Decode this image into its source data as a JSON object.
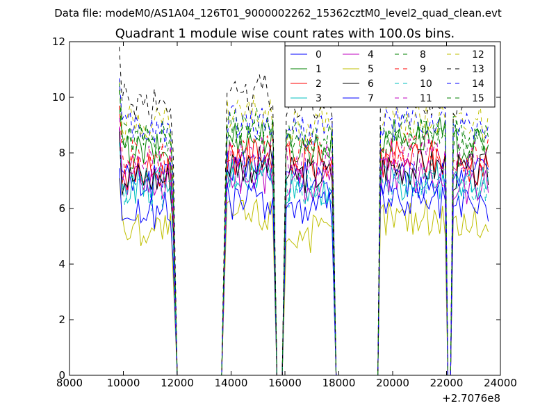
{
  "chart_data": {
    "type": "line",
    "suptitle": "Data file: modeM0/AS1A04_126T01_9000002262_15362cztM0_level2_quad_clean.evt",
    "title": "Quadrant 1 module wise count rates with 100.0s bins.",
    "xlabel": "",
    "ylabel": "",
    "x_offset_label": "+2.7076e8",
    "xlim": [
      8000,
      24000
    ],
    "ylim": [
      0,
      12
    ],
    "xticks": [
      8000,
      10000,
      12000,
      14000,
      16000,
      18000,
      20000,
      22000,
      24000
    ],
    "yticks": [
      0,
      2,
      4,
      6,
      8,
      10,
      12
    ],
    "grid": false,
    "legend_position": "top-right",
    "segments": [
      {
        "start": 9850,
        "end": 11850
      },
      {
        "start": 13850,
        "end": 15550
      },
      {
        "start": 16050,
        "end": 17750
      },
      {
        "start": 19550,
        "end": 21950
      },
      {
        "start": 22250,
        "end": 23550
      }
    ],
    "gap_samples": [
      {
        "x": 12000,
        "y": 0
      },
      {
        "x": 13650,
        "y": 0
      },
      {
        "x": 15700,
        "y": 0
      },
      {
        "x": 15900,
        "y": 0
      },
      {
        "x": 17900,
        "y": 0
      },
      {
        "x": 19450,
        "y": 0
      },
      {
        "x": 22050,
        "y": 0
      },
      {
        "x": 22150,
        "y": 0
      }
    ],
    "series": [
      {
        "name": "0",
        "color": "#0000ff",
        "dash": "solid",
        "levels": [
          7.0,
          7.6,
          7.0,
          7.0,
          7.2
        ]
      },
      {
        "name": "1",
        "color": "#008000",
        "dash": "solid",
        "levels": [
          8.0,
          8.6,
          8.2,
          8.6,
          8.2
        ]
      },
      {
        "name": "2",
        "color": "#ff0000",
        "dash": "solid",
        "levels": [
          7.3,
          7.9,
          7.6,
          7.8,
          7.5
        ]
      },
      {
        "name": "3",
        "color": "#00bfbf",
        "dash": "solid",
        "levels": [
          6.8,
          7.2,
          6.8,
          7.0,
          6.9
        ]
      },
      {
        "name": "4",
        "color": "#bf00bf",
        "dash": "solid",
        "levels": [
          7.0,
          7.2,
          6.9,
          7.2,
          6.8
        ]
      },
      {
        "name": "5",
        "color": "#bfbf00",
        "dash": "solid",
        "levels": [
          5.3,
          5.8,
          5.1,
          5.7,
          5.5
        ]
      },
      {
        "name": "6",
        "color": "#000000",
        "dash": "solid",
        "levels": [
          7.1,
          7.6,
          7.2,
          7.5,
          7.3
        ]
      },
      {
        "name": "7",
        "color": "#0000ff",
        "dash": "solid",
        "levels": [
          5.9,
          6.3,
          6.0,
          6.2,
          6.1
        ]
      },
      {
        "name": "8",
        "color": "#008000",
        "dash": "dashed",
        "levels": [
          8.5,
          9.0,
          8.6,
          8.8,
          8.7
        ]
      },
      {
        "name": "9",
        "color": "#ff0000",
        "dash": "dashed",
        "levels": [
          7.8,
          8.2,
          7.9,
          8.1,
          7.9
        ]
      },
      {
        "name": "10",
        "color": "#00bfbf",
        "dash": "dashed",
        "levels": [
          6.6,
          7.0,
          6.7,
          6.9,
          6.8
        ]
      },
      {
        "name": "11",
        "color": "#bf00bf",
        "dash": "dashed",
        "levels": [
          7.6,
          8.0,
          7.7,
          7.9,
          7.8
        ]
      },
      {
        "name": "12",
        "color": "#bfbf00",
        "dash": "dashed",
        "levels": [
          9.1,
          9.4,
          9.0,
          9.3,
          9.1
        ]
      },
      {
        "name": "13",
        "color": "#000000",
        "dash": "dashed",
        "levels": [
          9.8,
          10.2,
          9.8,
          10.0,
          9.9
        ]
      },
      {
        "name": "14",
        "color": "#0000ff",
        "dash": "dashed",
        "levels": [
          8.8,
          9.1,
          8.8,
          9.0,
          8.9
        ]
      },
      {
        "name": "15",
        "color": "#008000",
        "dash": "dashed",
        "levels": [
          8.5,
          8.8,
          8.5,
          8.7,
          8.6
        ]
      }
    ]
  }
}
